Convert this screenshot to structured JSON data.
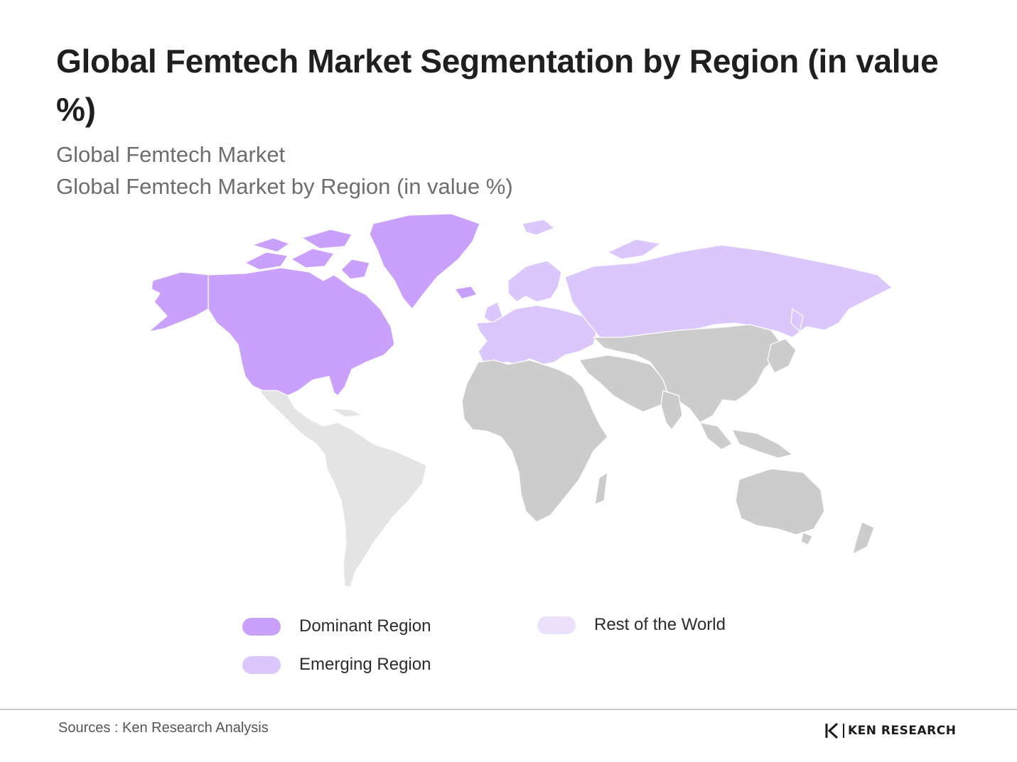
{
  "title": "Global Femtech Market Segmentation by Region (in value %)",
  "subtitle_1": "Global Femtech Market",
  "subtitle_2": "Global Femtech Market by Region (in value %)",
  "legend": {
    "dominant": {
      "label": "Dominant Region",
      "color": "#c9a0fb"
    },
    "emerging": {
      "label": "Emerging Region",
      "color": "#dcc7fc"
    },
    "rest": {
      "label": "Rest of the World",
      "color": "#ede0fd"
    }
  },
  "map_colors": {
    "north_america": "#c9a0fb",
    "europe_russia": "#dcc7fc",
    "latin_america": "#e4e4e4",
    "asia_africa_oceania": "#cccccc",
    "borders": "#ffffff"
  },
  "footer": {
    "source": "Sources : Ken Research Analysis",
    "logo_text": "KEN RESEARCH",
    "logo_icon": "ken-research-logo-icon"
  }
}
